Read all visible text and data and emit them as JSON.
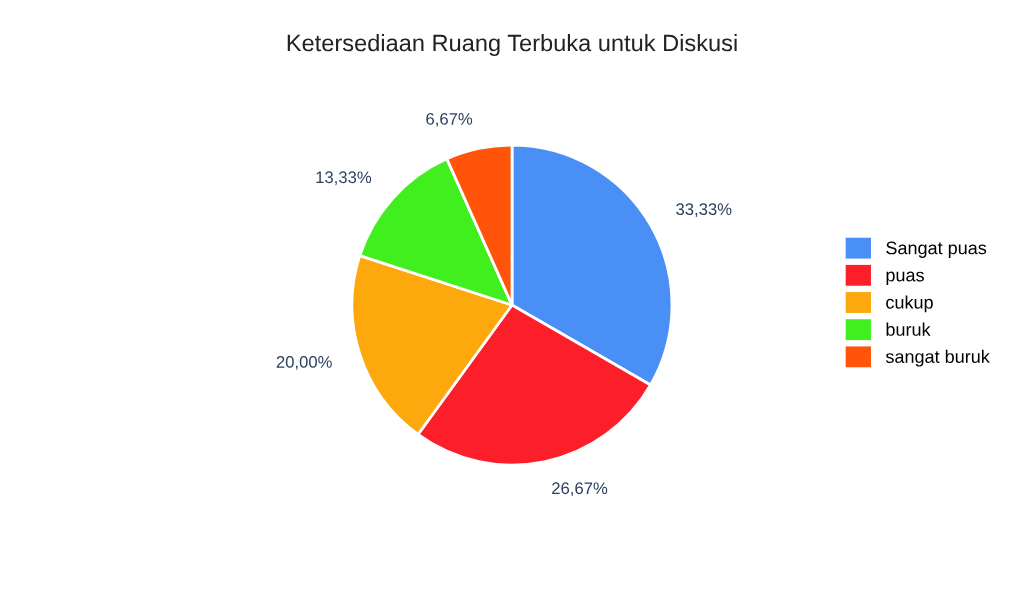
{
  "chart_data": {
    "type": "pie",
    "title": "Ketersediaan Ruang Terbuka untuk Diskusi",
    "categories": [
      "Sangat puas",
      "puas",
      "cukup",
      "buruk",
      "sangat buruk"
    ],
    "values": [
      33.33,
      26.67,
      20.0,
      13.33,
      6.67
    ],
    "colors": [
      "#4a8ff5",
      "#fc1f2a",
      "#fda80d",
      "#41ef1f",
      "#ff5409"
    ],
    "value_labels": [
      "33,33%",
      "26,67%",
      "20,00%",
      "13,33%",
      "6,67%"
    ],
    "legend": "right"
  }
}
